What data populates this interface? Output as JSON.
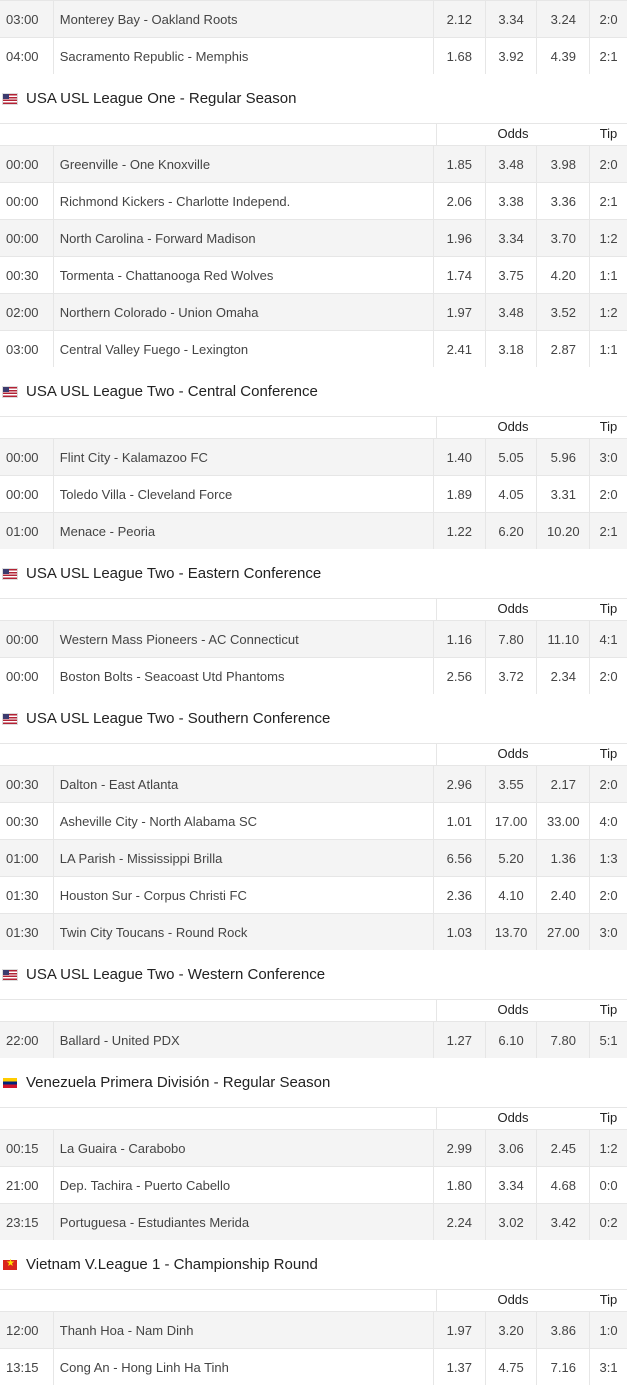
{
  "labels": {
    "odds": "Odds",
    "tip": "Tip"
  },
  "top_rows": [
    {
      "time": "03:00",
      "match": "Monterey Bay - Oakland Roots",
      "o1": "2.12",
      "ox": "3.34",
      "o2": "3.24",
      "tip": "2:0"
    },
    {
      "time": "04:00",
      "match": "Sacramento Republic - Memphis",
      "o1": "1.68",
      "ox": "3.92",
      "o2": "4.39",
      "tip": "2:1"
    }
  ],
  "leagues": [
    {
      "flag": "us",
      "name": "USA USL League One - Regular Season",
      "rows": [
        {
          "time": "00:00",
          "match": "Greenville - One Knoxville",
          "o1": "1.85",
          "ox": "3.48",
          "o2": "3.98",
          "tip": "2:0"
        },
        {
          "time": "00:00",
          "match": "Richmond Kickers - Charlotte Independ.",
          "o1": "2.06",
          "ox": "3.38",
          "o2": "3.36",
          "tip": "2:1"
        },
        {
          "time": "00:00",
          "match": "North Carolina - Forward Madison",
          "o1": "1.96",
          "ox": "3.34",
          "o2": "3.70",
          "tip": "1:2"
        },
        {
          "time": "00:30",
          "match": "Tormenta - Chattanooga Red Wolves",
          "o1": "1.74",
          "ox": "3.75",
          "o2": "4.20",
          "tip": "1:1"
        },
        {
          "time": "02:00",
          "match": "Northern Colorado - Union Omaha",
          "o1": "1.97",
          "ox": "3.48",
          "o2": "3.52",
          "tip": "1:2"
        },
        {
          "time": "03:00",
          "match": "Central Valley Fuego - Lexington",
          "o1": "2.41",
          "ox": "3.18",
          "o2": "2.87",
          "tip": "1:1"
        }
      ]
    },
    {
      "flag": "us",
      "name": "USA USL League Two - Central Conference",
      "rows": [
        {
          "time": "00:00",
          "match": "Flint City - Kalamazoo FC",
          "o1": "1.40",
          "ox": "5.05",
          "o2": "5.96",
          "tip": "3:0"
        },
        {
          "time": "00:00",
          "match": "Toledo Villa - Cleveland Force",
          "o1": "1.89",
          "ox": "4.05",
          "o2": "3.31",
          "tip": "2:0"
        },
        {
          "time": "01:00",
          "match": "Menace - Peoria",
          "o1": "1.22",
          "ox": "6.20",
          "o2": "10.20",
          "tip": "2:1"
        }
      ]
    },
    {
      "flag": "us",
      "name": "USA USL League Two - Eastern Conference",
      "rows": [
        {
          "time": "00:00",
          "match": "Western Mass Pioneers - AC Connecticut",
          "o1": "1.16",
          "ox": "7.80",
          "o2": "11.10",
          "tip": "4:1"
        },
        {
          "time": "00:00",
          "match": "Boston Bolts - Seacoast Utd Phantoms",
          "o1": "2.56",
          "ox": "3.72",
          "o2": "2.34",
          "tip": "2:0"
        }
      ]
    },
    {
      "flag": "us",
      "name": "USA USL League Two - Southern Conference",
      "rows": [
        {
          "time": "00:30",
          "match": "Dalton - East Atlanta",
          "o1": "2.96",
          "ox": "3.55",
          "o2": "2.17",
          "tip": "2:0"
        },
        {
          "time": "00:30",
          "match": "Asheville City - North Alabama SC",
          "o1": "1.01",
          "ox": "17.00",
          "o2": "33.00",
          "tip": "4:0"
        },
        {
          "time": "01:00",
          "match": "LA Parish - Mississippi Brilla",
          "o1": "6.56",
          "ox": "5.20",
          "o2": "1.36",
          "tip": "1:3"
        },
        {
          "time": "01:30",
          "match": "Houston Sur - Corpus Christi FC",
          "o1": "2.36",
          "ox": "4.10",
          "o2": "2.40",
          "tip": "2:0"
        },
        {
          "time": "01:30",
          "match": "Twin City Toucans - Round Rock",
          "o1": "1.03",
          "ox": "13.70",
          "o2": "27.00",
          "tip": "3:0"
        }
      ]
    },
    {
      "flag": "us",
      "name": "USA USL League Two - Western Conference",
      "rows": [
        {
          "time": "22:00",
          "match": "Ballard - United PDX",
          "o1": "1.27",
          "ox": "6.10",
          "o2": "7.80",
          "tip": "5:1"
        }
      ]
    },
    {
      "flag": "ve",
      "name": "Venezuela Primera División - Regular Season",
      "rows": [
        {
          "time": "00:15",
          "match": "La Guaira - Carabobo",
          "o1": "2.99",
          "ox": "3.06",
          "o2": "2.45",
          "tip": "1:2"
        },
        {
          "time": "21:00",
          "match": "Dep. Tachira - Puerto Cabello",
          "o1": "1.80",
          "ox": "3.34",
          "o2": "4.68",
          "tip": "0:0"
        },
        {
          "time": "23:15",
          "match": "Portuguesa - Estudiantes Merida",
          "o1": "2.24",
          "ox": "3.02",
          "o2": "3.42",
          "tip": "0:2"
        }
      ]
    },
    {
      "flag": "vn",
      "name": "Vietnam V.League 1 - Championship Round",
      "rows": [
        {
          "time": "12:00",
          "match": "Thanh Hoa - Nam Dinh",
          "o1": "1.97",
          "ox": "3.20",
          "o2": "3.86",
          "tip": "1:0"
        },
        {
          "time": "13:15",
          "match": "Cong An - Hong Linh Ha Tinh",
          "o1": "1.37",
          "ox": "4.75",
          "o2": "7.16",
          "tip": "3:1"
        }
      ]
    }
  ]
}
